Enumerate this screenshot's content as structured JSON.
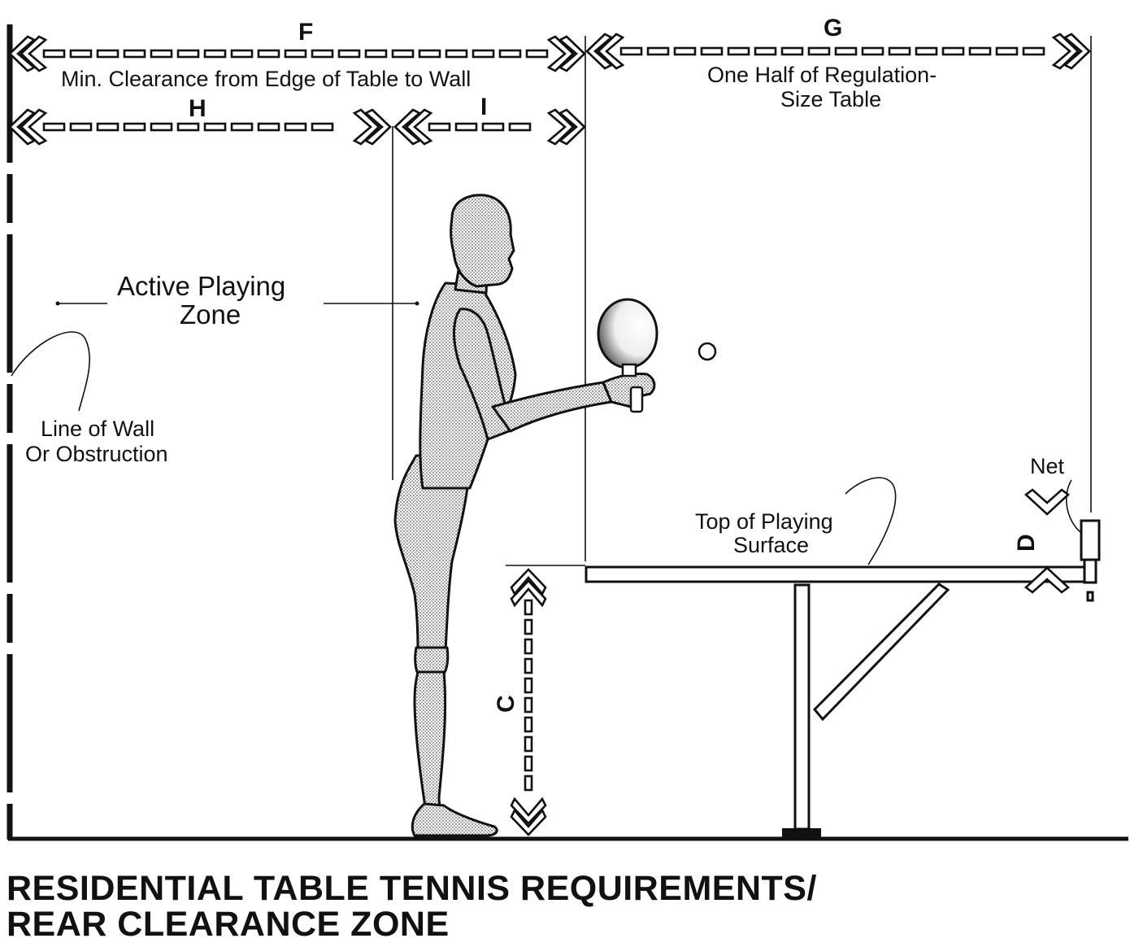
{
  "labels": {
    "F": "F",
    "G": "G",
    "H": "H",
    "I": "I",
    "C": "C",
    "D": "D",
    "min_clearance": "Min. Clearance from Edge of Table to Wall",
    "one_half_line1": "One Half of Regulation-",
    "one_half_line2": "Size Table",
    "active_line1": "Active Playing",
    "active_line2": "Zone",
    "wall_line1": "Line of Wall",
    "wall_line2": "Or Obstruction",
    "net": "Net",
    "top_line1": "Top of Playing",
    "top_line2": "Surface"
  },
  "title": {
    "line1": "RESIDENTIAL TABLE TENNIS REQUIREMENTS/",
    "line2": "REAR CLEARANCE ZONE"
  }
}
